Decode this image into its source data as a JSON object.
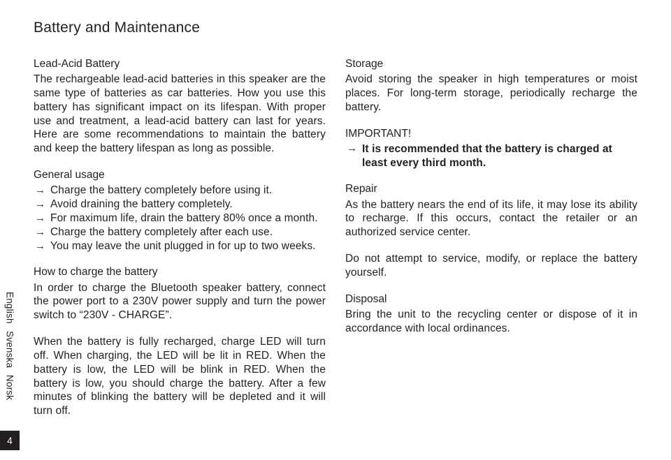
{
  "title": "Battery and Maintenance",
  "leadAcid": {
    "heading": "Lead-Acid Battery",
    "text": "The rechargeable lead-acid batteries in this speaker are the same type of batteries as car batteries. How you use this battery has significant impact on its lifespan. With proper use and treatment, a lead-acid battery can last for years. Here are some recommendations to maintain the battery and keep the battery lifespan as long as possible."
  },
  "general": {
    "heading": "General usage",
    "items": [
      "Charge the battery completely before using it.",
      "Avoid draining the battery completely.",
      "For maximum life, drain the battery 80% once a month.",
      "Charge the battery completely after each use.",
      "You may leave the unit plugged in for up to two weeks."
    ]
  },
  "howto": {
    "heading": "How to charge the battery",
    "p1": "In order to charge the Bluetooth speaker battery, connect the power port to a 230V power supply and turn the power switch to “230V - CHARGE”.",
    "p2": "When the battery is fully recharged, charge LED will turn off. When charging, the LED will be lit in RED. When the battery is low, the LED will be blink in RED. When the battery is low, you should charge the battery. After a few minutes of blinking the battery will be depleted and it will turn off."
  },
  "storage": {
    "heading": "Storage",
    "text": "Avoid storing the speaker in high temperatures or moist places. For long-term storage, periodically recharge the battery."
  },
  "important": {
    "heading": "IMPORTANT!",
    "text": "It is recommended that the battery is charged at least every third month."
  },
  "repair": {
    "heading": "Repair",
    "p1": "As the battery nears the end of its life, it may lose its ability to recharge. If this occurs, contact the retailer or an authorized service center.",
    "p2": "Do not attempt to service, modify, or replace the battery yourself."
  },
  "disposal": {
    "heading": "Disposal",
    "text": "Bring the unit to the recycling center or dispose of it in accordance with local ordinances."
  },
  "langs": {
    "en": "English",
    "sv": "Svenska",
    "no": "Norsk"
  },
  "pageNumber": "4"
}
